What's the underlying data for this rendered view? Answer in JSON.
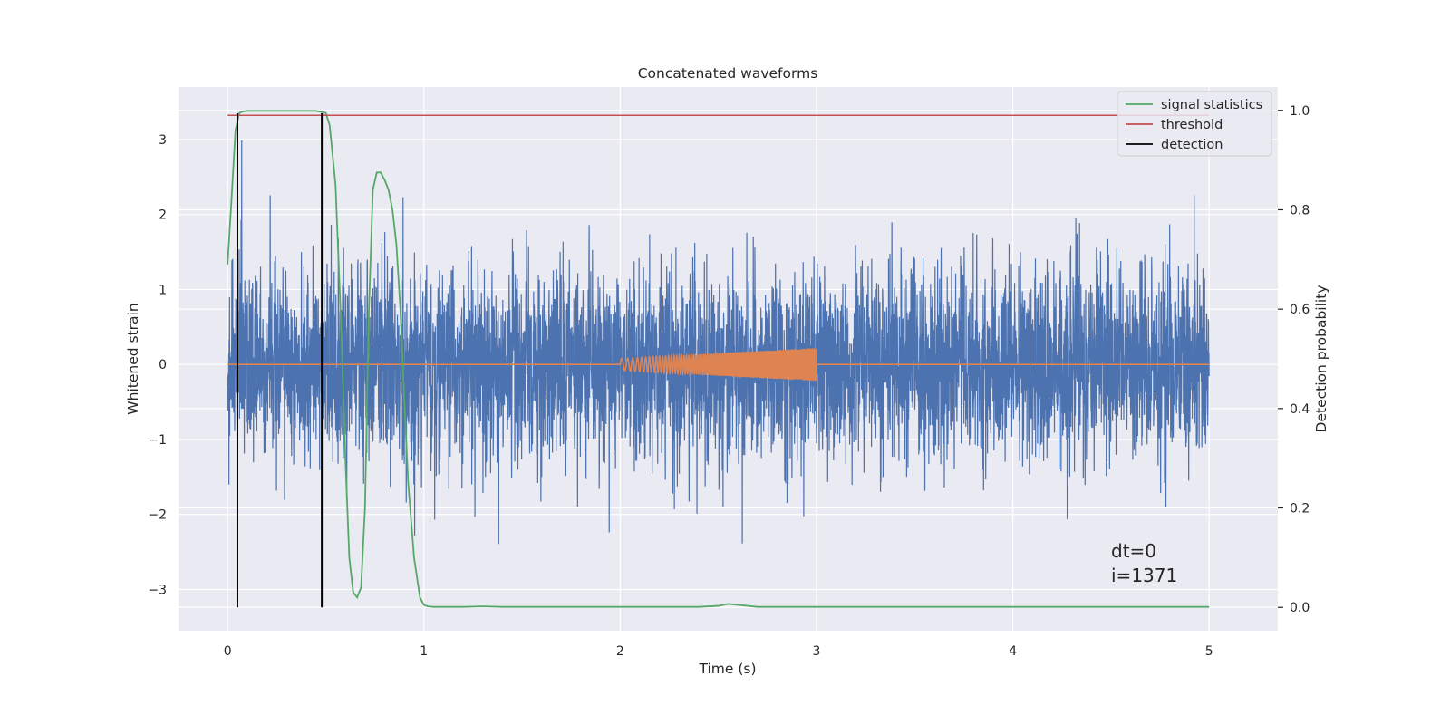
{
  "chart_data": {
    "type": "line",
    "title": "Concatenated waveforms",
    "xlabel": "Time (s)",
    "ylabel": "Whitened strain",
    "ylabel_right": "Detection probability",
    "xlim": [
      -0.25,
      5.35
    ],
    "ylim": [
      -3.55,
      3.7
    ],
    "ylim_right": [
      -0.047,
      1.047
    ],
    "xticks": [
      0,
      1,
      2,
      3,
      4,
      5
    ],
    "xtick_labels": [
      "0",
      "1",
      "2",
      "3",
      "4",
      "5"
    ],
    "yticks": [
      -3,
      -2,
      -1,
      0,
      1,
      2,
      3
    ],
    "ytick_labels": [
      "−3",
      "−2",
      "−1",
      "0",
      "1",
      "2",
      "3"
    ],
    "yticks_right": [
      0.0,
      0.2,
      0.4,
      0.6,
      0.8,
      1.0
    ],
    "ytick_right_labels": [
      "0.0",
      "0.2",
      "0.4",
      "0.6",
      "0.8",
      "1.0"
    ],
    "grid": true,
    "legend_position": "top-right",
    "colors": {
      "strain": "#4c72b0",
      "injection": "#dd8452",
      "signal_statistics": "#55a868",
      "threshold": "#c44e52",
      "detection": "#000000",
      "background": "#eaeaf2",
      "grid": "#ffffff"
    },
    "series": [
      {
        "name": "signal statistics",
        "axis": "right",
        "x": [
          0.0,
          0.02,
          0.04,
          0.06,
          0.08,
          0.1,
          0.2,
          0.3,
          0.4,
          0.45,
          0.5,
          0.52,
          0.55,
          0.58,
          0.6,
          0.62,
          0.64,
          0.66,
          0.68,
          0.7,
          0.72,
          0.74,
          0.76,
          0.78,
          0.8,
          0.82,
          0.84,
          0.86,
          0.88,
          0.9,
          0.92,
          0.95,
          0.98,
          1.0,
          1.02,
          1.05,
          1.1,
          1.2,
          1.3,
          1.4,
          1.6,
          2.0,
          2.4,
          2.5,
          2.55,
          2.6,
          2.7,
          2.8,
          3.0,
          4.0,
          5.0
        ],
        "y": [
          0.69,
          0.82,
          0.96,
          0.995,
          0.998,
          0.999,
          0.999,
          0.999,
          0.999,
          0.999,
          0.995,
          0.97,
          0.85,
          0.55,
          0.3,
          0.1,
          0.03,
          0.02,
          0.04,
          0.2,
          0.6,
          0.84,
          0.875,
          0.875,
          0.86,
          0.84,
          0.8,
          0.73,
          0.6,
          0.42,
          0.25,
          0.1,
          0.02,
          0.005,
          0.002,
          0.001,
          0.001,
          0.001,
          0.002,
          0.001,
          0.001,
          0.001,
          0.001,
          0.003,
          0.007,
          0.005,
          0.001,
          0.001,
          0.001,
          0.001,
          0.001
        ]
      },
      {
        "name": "threshold",
        "axis": "right",
        "x": [
          0.0,
          5.0
        ],
        "y": [
          0.99,
          0.99
        ]
      },
      {
        "name": "detection",
        "axis": "left",
        "vlines": [
          0.05,
          0.48
        ]
      }
    ],
    "strain": {
      "x_range": [
        0.0,
        5.0
      ],
      "noise_std": 0.65,
      "peak_ymax": 3.35,
      "peak_ymin": -3.2
    },
    "injection": {
      "x_range": [
        2.0,
        3.0
      ],
      "amplitude_start": 0.08,
      "amplitude_end": 0.22
    },
    "annotations": [
      "dt=0",
      "i=1371"
    ]
  }
}
